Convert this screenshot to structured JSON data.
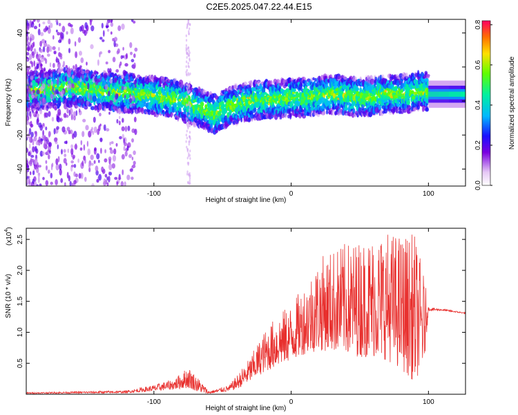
{
  "title": "C2E5.2025.047.22.44.E15",
  "colors": {
    "series": "#e8302e",
    "axis": "#000000"
  },
  "colorbar": {
    "label": "Normalized spectral amplitude",
    "ticks": [
      "0.0",
      "0.2",
      "0.4",
      "0.6",
      "0.8"
    ],
    "tick_values": [
      0,
      0.2,
      0.4,
      0.6,
      0.8
    ],
    "range": [
      0,
      0.82
    ]
  },
  "chart_data": [
    {
      "type": "heatmap",
      "xlabel": "Height of straight line (km)",
      "ylabel": "Frequency (Hz)",
      "xlim": [
        -193,
        127
      ],
      "ylim": [
        -50,
        48
      ],
      "x_ticks": [
        "-100",
        "0",
        "100"
      ],
      "x_tick_values": [
        -100,
        0,
        100
      ],
      "y_ticks": [
        "-40",
        "-20",
        "0",
        "20",
        "40"
      ],
      "y_tick_values": [
        -40,
        -20,
        0,
        20,
        40
      ],
      "ridge": {
        "x": [
          -190,
          -175,
          -160,
          -150,
          -140,
          -130,
          -120,
          -110,
          -100,
          -90,
          -80,
          -70,
          -60,
          -55,
          -50,
          -40,
          -30,
          -20,
          -10,
          0,
          10,
          20,
          30,
          40,
          50,
          60,
          70,
          80,
          90,
          98,
          100,
          127
        ],
        "y": [
          6,
          7,
          8,
          7,
          6,
          5,
          5,
          4,
          3,
          2,
          0,
          -3,
          -6,
          -8,
          -5,
          -2,
          0,
          1,
          1,
          2,
          2,
          3,
          4,
          3,
          2,
          3,
          4,
          4,
          5,
          6,
          4,
          4
        ]
      }
    },
    {
      "type": "line",
      "xlabel": "Height of straight line (km)",
      "ylabel": "SNR (10 * v/v)",
      "y_multiplier": "(x10",
      "y_multiplier_exp": "4",
      "xlim": [
        -193,
        127
      ],
      "ylim": [
        0,
        2.68
      ],
      "x_ticks": [
        "-100",
        "0",
        "100"
      ],
      "x_tick_values": [
        -100,
        0,
        100
      ],
      "y_ticks": [
        "0.5",
        "1.0",
        "1.5",
        "2.0",
        "2.5"
      ],
      "y_tick_values": [
        0.5,
        1.0,
        1.5,
        2.0,
        2.5
      ],
      "envelope": {
        "x": [
          -193,
          -120,
          -100,
          -85,
          -75,
          -65,
          -60,
          -45,
          -38,
          -30,
          -20,
          -10,
          0,
          10,
          20,
          30,
          40,
          50,
          60,
          70,
          80,
          90,
          97,
          100,
          102,
          110,
          127
        ],
        "base": [
          0.01,
          0.02,
          0.05,
          0.08,
          0.1,
          0.02,
          0.01,
          0.05,
          0.1,
          0.2,
          0.35,
          0.45,
          0.55,
          0.65,
          0.7,
          0.7,
          0.65,
          0.6,
          0.6,
          0.55,
          0.4,
          0.2,
          0.5,
          1.35,
          1.35,
          1.35,
          1.3
        ],
        "peak": [
          0.03,
          0.06,
          0.15,
          0.25,
          0.45,
          0.2,
          0.05,
          0.15,
          0.35,
          0.6,
          1.0,
          1.3,
          1.45,
          1.8,
          2.2,
          2.35,
          2.45,
          2.5,
          2.6,
          2.65,
          2.6,
          2.6,
          1.9,
          1.4,
          1.4,
          1.38,
          1.32
        ]
      }
    }
  ]
}
